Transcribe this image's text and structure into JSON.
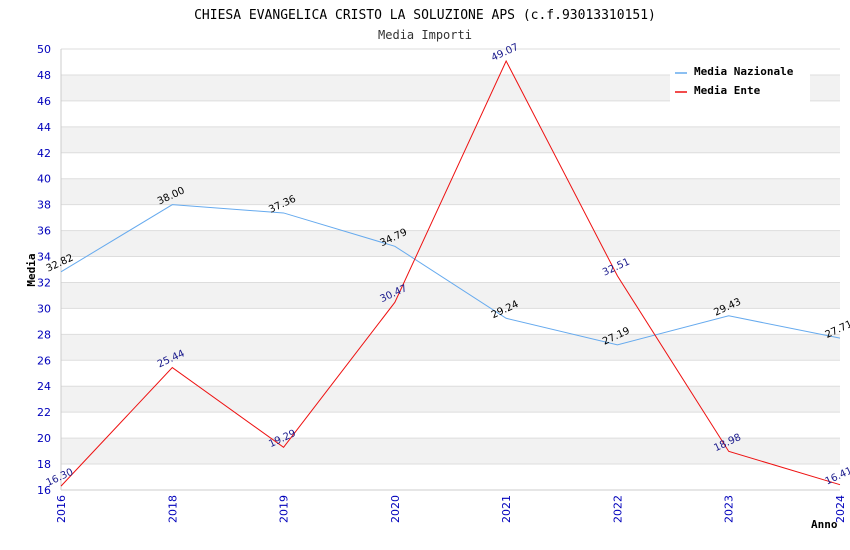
{
  "chart_data": {
    "type": "line",
    "title": "CHIESA EVANGELICA CRISTO LA SOLUZIONE APS (c.f.93013310151)",
    "subtitle": "Media Importi",
    "xlabel": "Anno",
    "ylabel": "Media",
    "ylim": [
      16,
      50
    ],
    "yticks": [
      "16",
      "18",
      "20",
      "22",
      "24",
      "26",
      "28",
      "30",
      "32",
      "34",
      "36",
      "38",
      "40",
      "42",
      "44",
      "46",
      "48",
      "50"
    ],
    "categories": [
      "2016",
      "2018",
      "2019",
      "2020",
      "2021",
      "2022",
      "2023",
      "2024"
    ],
    "grid": true,
    "legend_position": "top-right",
    "series": [
      {
        "name": "Media Nazionale",
        "color": "#66aaee",
        "values": [
          32.82,
          38.0,
          37.36,
          34.79,
          29.24,
          27.19,
          29.43,
          27.71
        ],
        "labels": [
          "32.82",
          "38.00",
          "37.36",
          "34.79",
          "29.24",
          "27.19",
          "29.43",
          "27.71"
        ]
      },
      {
        "name": "Media Ente",
        "color": "#ee1111",
        "values": [
          16.3,
          25.44,
          19.29,
          30.47,
          49.07,
          32.51,
          18.98,
          16.41
        ],
        "labels": [
          "16.30",
          "25.44",
          "19.29",
          "30.47",
          "49.07",
          "32.51",
          "18.98",
          "16.41"
        ]
      }
    ]
  }
}
